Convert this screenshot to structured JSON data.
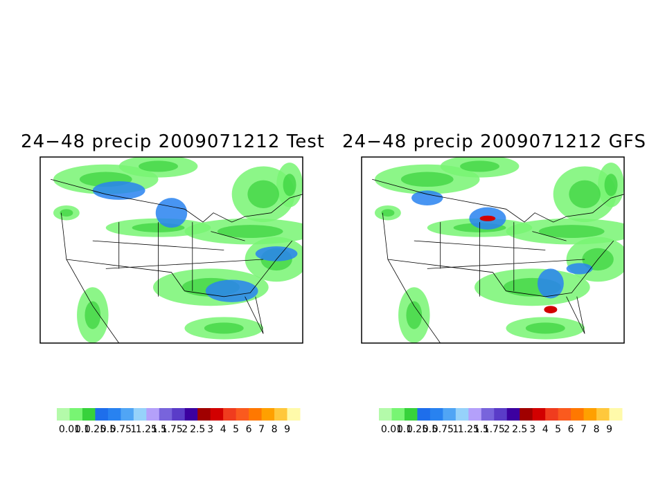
{
  "panels": [
    {
      "title": "24−48 precip 2009071212 Test",
      "colorbar": {
        "colors": [
          "#b4faaa",
          "#78f573",
          "#37d23c",
          "#1e6eeb",
          "#2882f0",
          "#50a5f5",
          "#96d2fa",
          "#b4a0fa",
          "#7864dc",
          "#5a3cc8",
          "#3c00a0",
          "#a00000",
          "#d20000",
          "#f03c1e",
          "#fa5a1e",
          "#ff7800",
          "#ffa000",
          "#ffc83c",
          "#fffaaa"
        ],
        "labels": [
          "0.01",
          "0.1",
          "0.25",
          "0.5",
          "0.75",
          "1",
          "1.25",
          "1.5",
          "1.75",
          "2",
          "2.5",
          "3",
          "4",
          "5",
          "6",
          "7",
          "8",
          "9"
        ]
      }
    },
    {
      "title": "24−48 precip 2009071212 GFS",
      "colorbar": {
        "colors": [
          "#b4faaa",
          "#78f573",
          "#37d23c",
          "#1e6eeb",
          "#2882f0",
          "#50a5f5",
          "#96d2fa",
          "#b4a0fa",
          "#7864dc",
          "#5a3cc8",
          "#3c00a0",
          "#a00000",
          "#d20000",
          "#f03c1e",
          "#fa5a1e",
          "#ff7800",
          "#ffa000",
          "#ffc83c",
          "#fffaaa"
        ],
        "labels": [
          "0.01",
          "0.1",
          "0.25",
          "0.5",
          "0.75",
          "1",
          "1.25",
          "1.5",
          "1.75",
          "2",
          "2.5",
          "3",
          "4",
          "5",
          "6",
          "7",
          "8",
          "9"
        ]
      }
    }
  ]
}
